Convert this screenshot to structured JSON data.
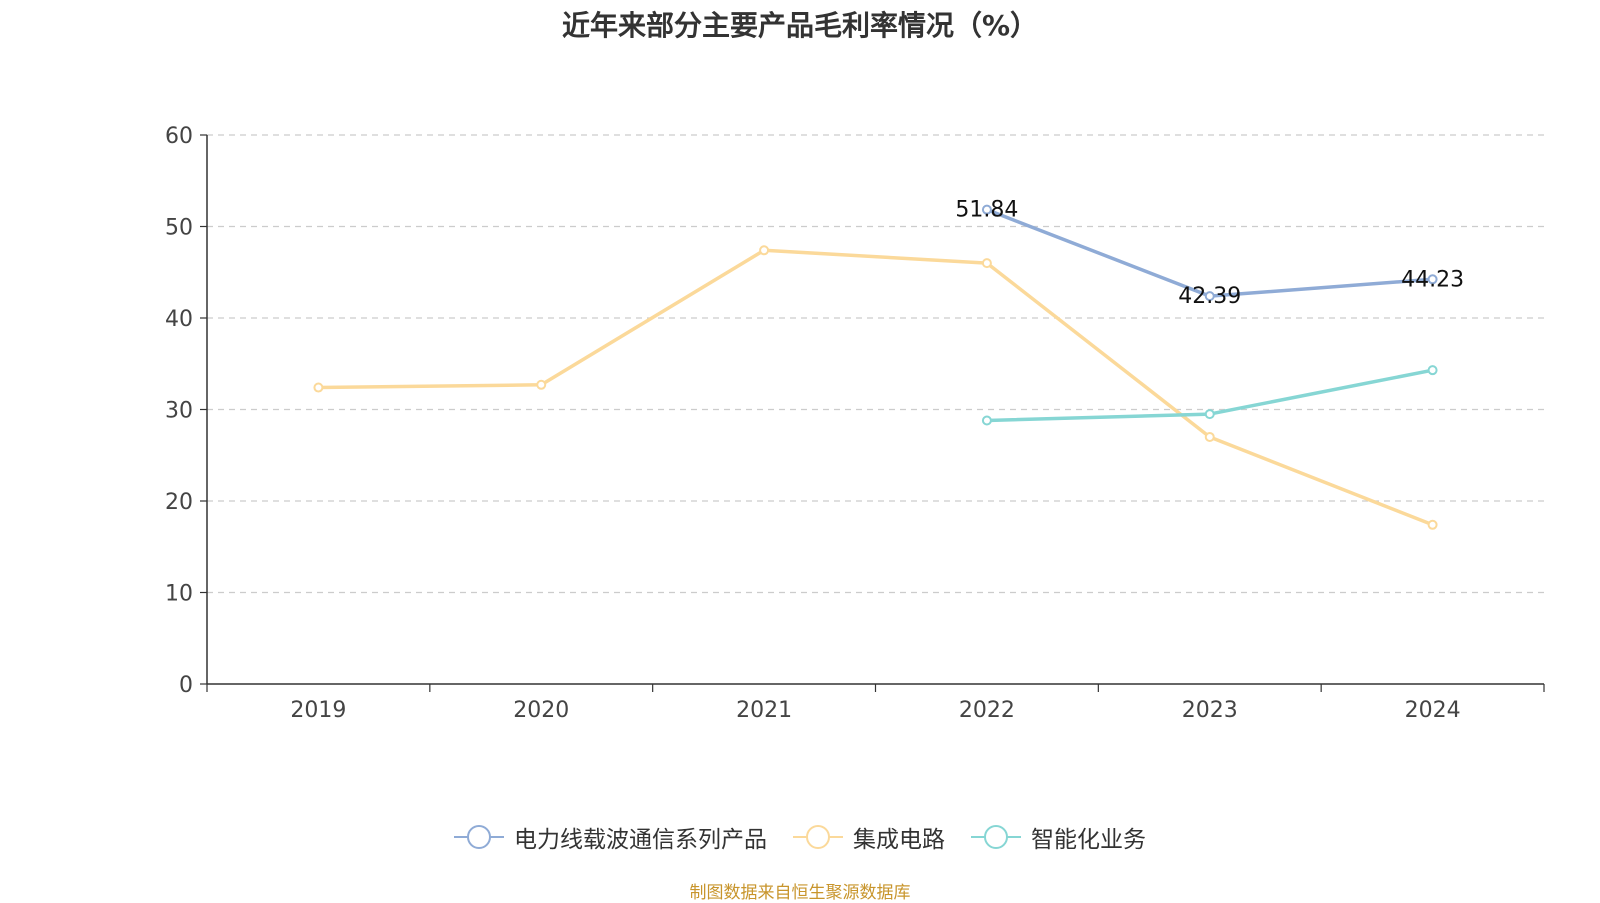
{
  "title": "近年来部分主要产品毛利率情况（%）",
  "source": "制图数据来自恒生聚源数据库",
  "chart_data": {
    "type": "line",
    "categories": [
      "2019",
      "2020",
      "2021",
      "2022",
      "2023",
      "2024"
    ],
    "ylim": [
      0,
      60
    ],
    "yticks": [
      0,
      10,
      20,
      30,
      40,
      50,
      60
    ],
    "grid": true,
    "legend_position": "bottom",
    "series": [
      {
        "name": "电力线载波通信系列产品",
        "color": "#8fabd6",
        "values": [
          null,
          null,
          null,
          51.84,
          42.39,
          44.23
        ],
        "labels": true
      },
      {
        "name": "集成电路",
        "color": "#fbd99a",
        "values": [
          32.4,
          32.7,
          47.4,
          46.0,
          27.0,
          17.4
        ],
        "labels": false
      },
      {
        "name": "智能化业务",
        "color": "#86d6d4",
        "values": [
          null,
          null,
          null,
          28.8,
          29.5,
          34.3
        ],
        "labels": false
      }
    ]
  }
}
